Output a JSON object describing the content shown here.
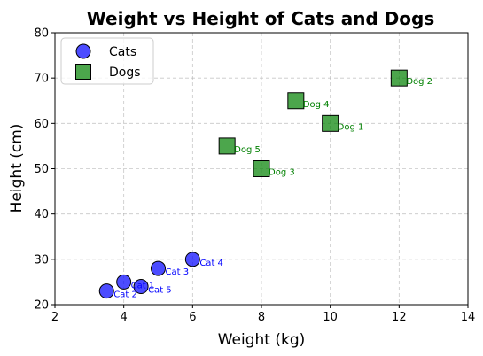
{
  "chart_data": {
    "type": "scatter",
    "title": "Weight vs Height of Cats and Dogs",
    "xlabel": "Weight (kg)",
    "ylabel": "Height (cm)",
    "xlim": [
      2,
      14
    ],
    "ylim": [
      20,
      80
    ],
    "xticks": [
      2,
      4,
      6,
      8,
      10,
      12,
      14
    ],
    "yticks": [
      20,
      30,
      40,
      50,
      60,
      70,
      80
    ],
    "grid": true,
    "legend_position": "top-left",
    "series": [
      {
        "name": "Cats",
        "marker": "circle",
        "color": "#0000ff",
        "points": [
          {
            "label": "Cat 1",
            "x": 4.0,
            "y": 25
          },
          {
            "label": "Cat 2",
            "x": 3.5,
            "y": 23
          },
          {
            "label": "Cat 3",
            "x": 5.0,
            "y": 28
          },
          {
            "label": "Cat 4",
            "x": 6.0,
            "y": 30
          },
          {
            "label": "Cat 5",
            "x": 4.5,
            "y": 24
          }
        ]
      },
      {
        "name": "Dogs",
        "marker": "square",
        "color": "#008000",
        "points": [
          {
            "label": "Dog 1",
            "x": 10,
            "y": 60
          },
          {
            "label": "Dog 2",
            "x": 12,
            "y": 70
          },
          {
            "label": "Dog 3",
            "x": 8,
            "y": 50
          },
          {
            "label": "Dog 4",
            "x": 9,
            "y": 65
          },
          {
            "label": "Dog 5",
            "x": 7,
            "y": 55
          }
        ]
      }
    ]
  }
}
